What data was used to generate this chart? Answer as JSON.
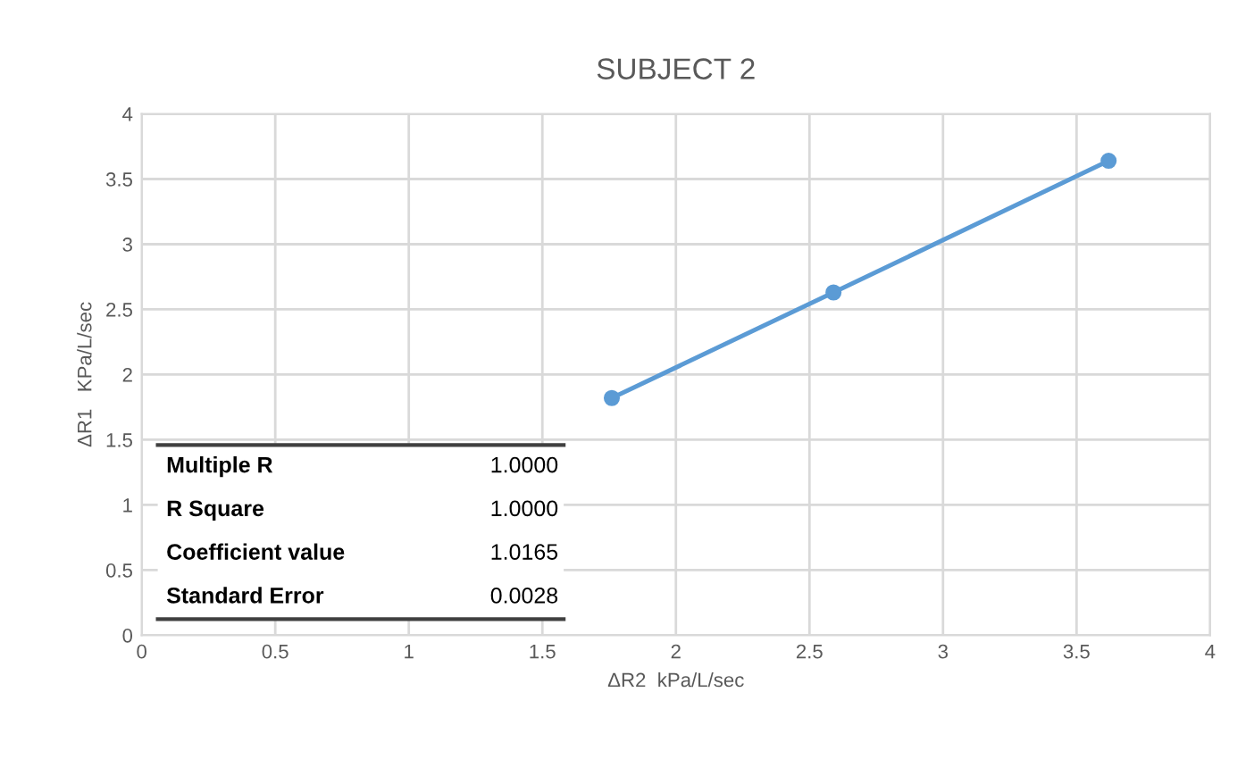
{
  "chart_data": {
    "type": "line",
    "title": "SUBJECT 2",
    "xlabel": "ΔR2  kPa/L/sec",
    "ylabel": "ΔR1   KPa/L/sec",
    "x": [
      1.76,
      2.59,
      3.62
    ],
    "series": [
      {
        "color": "#5b9bd5",
        "values": [
          1.82,
          2.63,
          3.64
        ]
      }
    ],
    "xlim": [
      0,
      4
    ],
    "xticks": [
      0,
      0.5,
      1,
      1.5,
      2,
      2.5,
      3,
      3.5,
      4
    ],
    "ylim": [
      0,
      4
    ],
    "yticks": [
      0,
      0.5,
      1,
      1.5,
      2,
      2.5,
      3,
      3.5,
      4
    ],
    "grid": true,
    "marker": "circle",
    "line_style": "solid",
    "annotations": [
      "Multiple R",
      "1.0000",
      "R Square",
      "1.0000",
      "Coefficient value",
      "1.0165",
      "Standard Error",
      "0.0028"
    ]
  }
}
